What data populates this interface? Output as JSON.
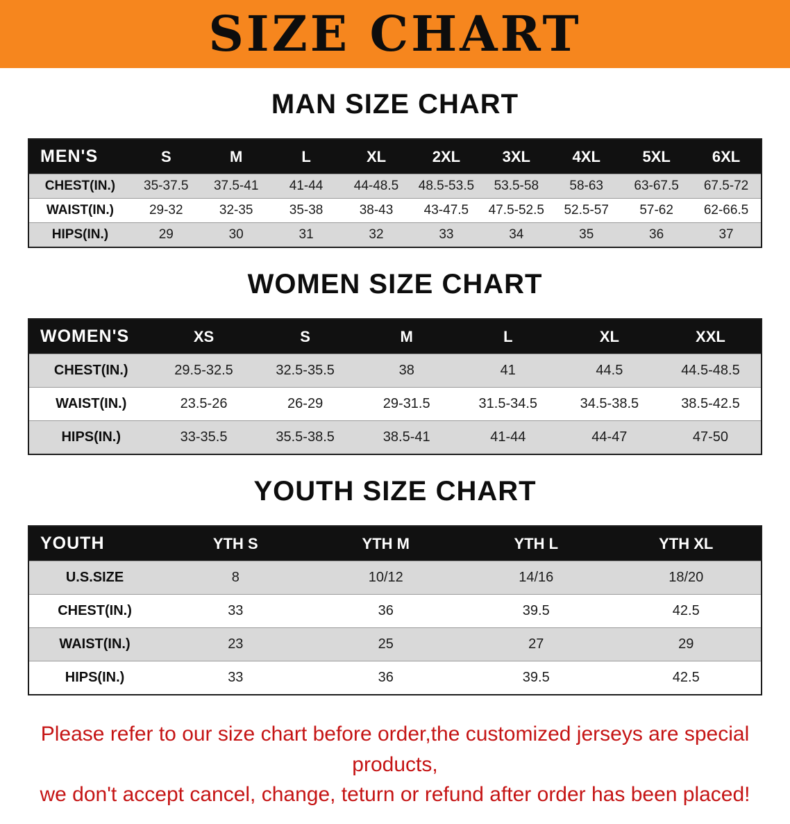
{
  "colors": {
    "banner_bg": "#f6861e",
    "header_bg": "#111111",
    "row_shade": "#d9d9d9",
    "note_text": "#c51414"
  },
  "banner": {
    "title": "SIZE CHART"
  },
  "sections": [
    {
      "heading": "MAN SIZE CHART",
      "table": {
        "header": [
          "MEN'S",
          "S",
          "M",
          "L",
          "XL",
          "2XL",
          "3XL",
          "4XL",
          "5XL",
          "6XL"
        ],
        "rows": [
          [
            "CHEST(IN.)",
            "35-37.5",
            "37.5-41",
            "41-44",
            "44-48.5",
            "48.5-53.5",
            "53.5-58",
            "58-63",
            "63-67.5",
            "67.5-72"
          ],
          [
            "WAIST(IN.)",
            "29-32",
            "32-35",
            "35-38",
            "38-43",
            "43-47.5",
            "47.5-52.5",
            "52.5-57",
            "57-62",
            "62-66.5"
          ],
          [
            "HIPS(IN.)",
            "29",
            "30",
            "31",
            "32",
            "33",
            "34",
            "35",
            "36",
            "37"
          ]
        ]
      }
    },
    {
      "heading": "WOMEN SIZE CHART",
      "table": {
        "header": [
          "WOMEN'S",
          "XS",
          "S",
          "M",
          "L",
          "XL",
          "XXL"
        ],
        "rows": [
          [
            "CHEST(IN.)",
            "29.5-32.5",
            "32.5-35.5",
            "38",
            "41",
            "44.5",
            "44.5-48.5"
          ],
          [
            "WAIST(IN.)",
            "23.5-26",
            "26-29",
            "29-31.5",
            "31.5-34.5",
            "34.5-38.5",
            "38.5-42.5"
          ],
          [
            "HIPS(IN.)",
            "33-35.5",
            "35.5-38.5",
            "38.5-41",
            "41-44",
            "44-47",
            "47-50"
          ]
        ]
      }
    },
    {
      "heading": "YOUTH SIZE CHART",
      "table": {
        "header": [
          "YOUTH",
          "YTH S",
          "YTH M",
          "YTH L",
          "YTH XL"
        ],
        "rows": [
          [
            "U.S.SIZE",
            "8",
            "10/12",
            "14/16",
            "18/20"
          ],
          [
            "CHEST(IN.)",
            "33",
            "36",
            "39.5",
            "42.5"
          ],
          [
            "WAIST(IN.)",
            "23",
            "25",
            "27",
            "29"
          ],
          [
            "HIPS(IN.)",
            "33",
            "36",
            "39.5",
            "42.5"
          ]
        ]
      }
    }
  ],
  "footer_note": {
    "line1": "Please refer to our size chart before order,the customized jerseys are special products,",
    "line2": "we don't accept cancel, change, teturn or refund after order has been placed!"
  }
}
